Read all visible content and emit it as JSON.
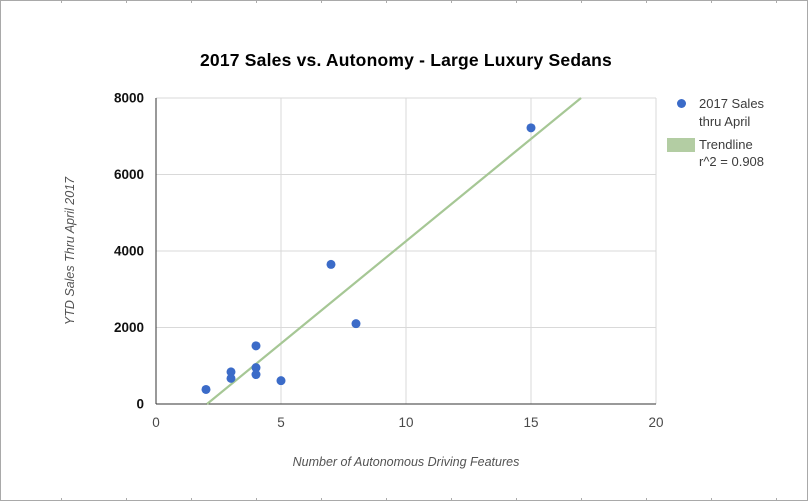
{
  "frame": {
    "background": "#ffffff",
    "border_color": "#a9a9a9",
    "gridline_stub_color": "#ababab"
  },
  "title": "2017 Sales vs. Autonomy - Large Luxury Sedans",
  "legend": {
    "series_item": {
      "marker": "circle",
      "marker_color": "#3b6bc8",
      "lines": {
        "line1": "2017 Sales",
        "line2": "thru April"
      }
    },
    "trendline_item": {
      "marker": "swatch",
      "swatch_color": "#b3cda3",
      "lines": {
        "line1": "Trendline",
        "line2": "r^2 = 0.908"
      }
    }
  },
  "chart_data": {
    "type": "scatter",
    "title": "2017 Sales vs. Autonomy - Large Luxury Sedans",
    "xlabel": "Number of Autonomous Driving Features",
    "ylabel": "YTD Sales Thru April 2017",
    "xlim": [
      0,
      20
    ],
    "ylim": [
      0,
      8000
    ],
    "x_ticks": [
      0,
      5,
      10,
      15,
      20
    ],
    "y_ticks": [
      0,
      2000,
      4000,
      6000,
      8000
    ],
    "grid": true,
    "legend_position": "right",
    "colors": {
      "point": "#3b6bc8",
      "trendline": "#a6c795",
      "gridline": "#d9d9d9",
      "axis": "#333333",
      "x_tick_label": "#494949",
      "y_tick_label": "#111111"
    },
    "series": [
      {
        "name": "2017 Sales thru April",
        "color": "#3b6bc8",
        "points": [
          [
            2,
            380
          ],
          [
            3,
            840
          ],
          [
            3,
            670
          ],
          [
            4,
            1520
          ],
          [
            4,
            950
          ],
          [
            4,
            770
          ],
          [
            5,
            610
          ],
          [
            7,
            3650
          ],
          [
            8,
            2100
          ],
          [
            15,
            7220
          ]
        ]
      }
    ],
    "trendline": {
      "label": "Trendline",
      "r_squared": 0.908,
      "color": "#a6c795",
      "x_start": 2.04,
      "y_start": 0,
      "x_end": 17.0,
      "y_end": 8000
    }
  }
}
